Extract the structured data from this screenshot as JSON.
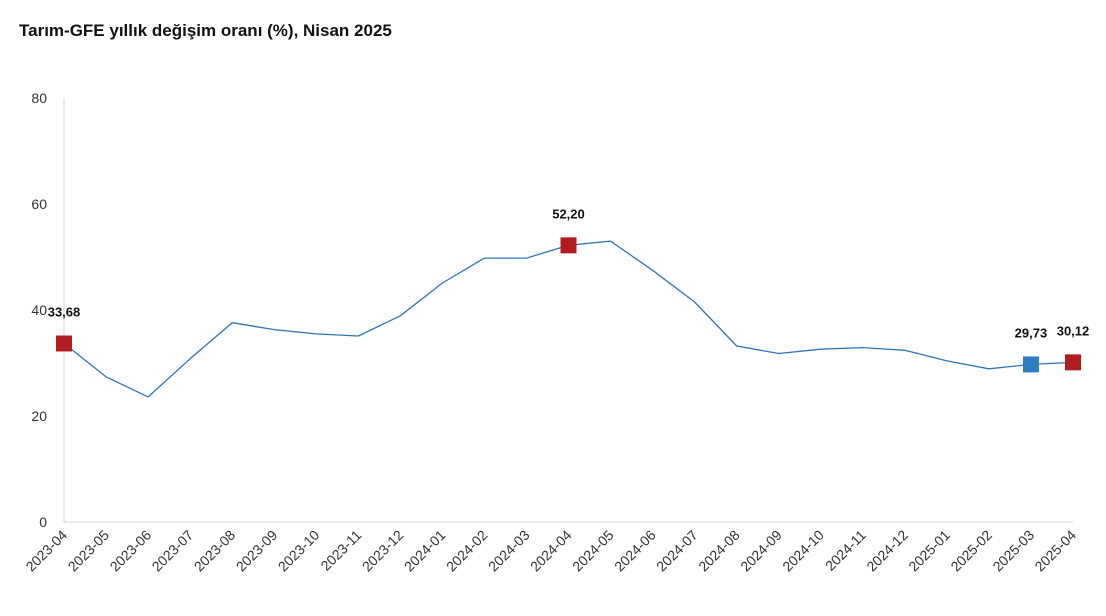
{
  "chart_data": {
    "type": "line",
    "title": "Tarım-GFE yıllık değişim oranı (%), Nisan 2025",
    "xlabel": "",
    "ylabel": "",
    "ylim": [
      0,
      80
    ],
    "yticks": [
      0,
      20,
      40,
      60,
      80
    ],
    "grid": false,
    "legend": "none",
    "categories": [
      "2023-04",
      "2023-05",
      "2023-06",
      "2023-07",
      "2023-08",
      "2023-09",
      "2023-10",
      "2023-11",
      "2023-12",
      "2024-01",
      "2024-02",
      "2024-03",
      "2024-04",
      "2024-05",
      "2024-06",
      "2024-07",
      "2024-08",
      "2024-09",
      "2024-10",
      "2024-11",
      "2024-12",
      "2025-01",
      "2025-02",
      "2025-03",
      "2025-04"
    ],
    "series": [
      {
        "values": [
          33.68,
          27.4,
          23.6,
          30.8,
          37.6,
          36.3,
          35.5,
          35.1,
          38.9,
          45.1,
          49.8,
          49.8,
          52.2,
          53.0,
          47.5,
          41.5,
          33.2,
          31.8,
          32.6,
          32.9,
          32.4,
          30.4,
          28.9,
          29.73,
          30.12
        ],
        "color": "#2e75b6"
      }
    ],
    "highlighted_points": [
      {
        "category": "2023-04",
        "value": 33.68,
        "label": "33,68",
        "color": "#b01c20"
      },
      {
        "category": "2024-04",
        "value": 52.2,
        "label": "52,20",
        "color": "#b01c20"
      },
      {
        "category": "2025-03",
        "value": 29.73,
        "label": "29,73",
        "color": "#2e7ebf"
      },
      {
        "category": "2025-04",
        "value": 30.12,
        "label": "30,12",
        "color": "#b01c20"
      }
    ]
  }
}
